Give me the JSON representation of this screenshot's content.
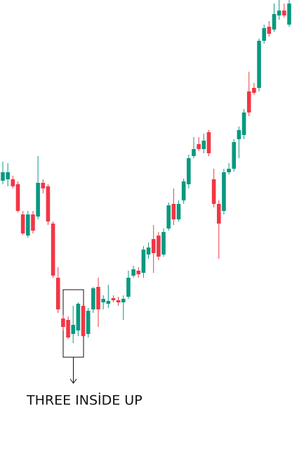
{
  "chart_data": {
    "type": "candlestick",
    "annotation": "THREE INSİDE UP",
    "up_color": "#089981",
    "down_color": "#f23645",
    "ylim": [
      0,
      640
    ],
    "open": [
      383,
      385,
      385,
      378,
      335,
      305,
      335,
      332,
      380,
      375,
      322,
      245,
      187,
      185,
      165,
      170,
      205,
      165,
      200,
      232,
      210,
      208,
      216,
      213,
      210,
      218,
      248,
      255,
      252,
      278,
      300,
      305,
      278,
      315,
      350,
      328,
      355,
      378,
      418,
      435,
      428,
      452,
      385,
      350,
      340,
      395,
      400,
      442,
      448,
      510,
      515,
      515,
      582,
      602,
      598,
      618,
      625,
      605
    ],
    "high": [
      410,
      408,
      390,
      382,
      340,
      340,
      340,
      418,
      385,
      378,
      325,
      260,
      192,
      190,
      205,
      210,
      208,
      202,
      232,
      245,
      220,
      235,
      220,
      218,
      220,
      255,
      262,
      260,
      290,
      295,
      320,
      310,
      315,
      352,
      372,
      355,
      386,
      420,
      445,
      445,
      450,
      455,
      400,
      355,
      400,
      408,
      442,
      460,
      485,
      538,
      522,
      585,
      605,
      610,
      635,
      640,
      635,
      640
    ],
    "low": [
      378,
      375,
      372,
      338,
      306,
      302,
      308,
      328,
      365,
      320,
      245,
      195,
      170,
      158,
      152,
      162,
      160,
      160,
      195,
      175,
      200,
      202,
      210,
      205,
      185,
      215,
      245,
      245,
      245,
      272,
      252,
      270,
      275,
      312,
      320,
      325,
      350,
      372,
      415,
      425,
      422,
      418,
      345,
      272,
      335,
      392,
      396,
      415,
      442,
      475,
      505,
      510,
      578,
      588,
      595,
      612,
      615,
      602
    ],
    "close": [
      395,
      395,
      375,
      340,
      308,
      335,
      312,
      380,
      372,
      325,
      248,
      200,
      175,
      160,
      178,
      208,
      162,
      198,
      230,
      200,
      215,
      212,
      213,
      210,
      215,
      245,
      257,
      250,
      285,
      288,
      280,
      275,
      310,
      348,
      328,
      350,
      382,
      415,
      428,
      428,
      440,
      422,
      350,
      322,
      395,
      400,
      438,
      455,
      480,
      480,
      508,
      582,
      600,
      592,
      620,
      625,
      618,
      635
    ]
  }
}
